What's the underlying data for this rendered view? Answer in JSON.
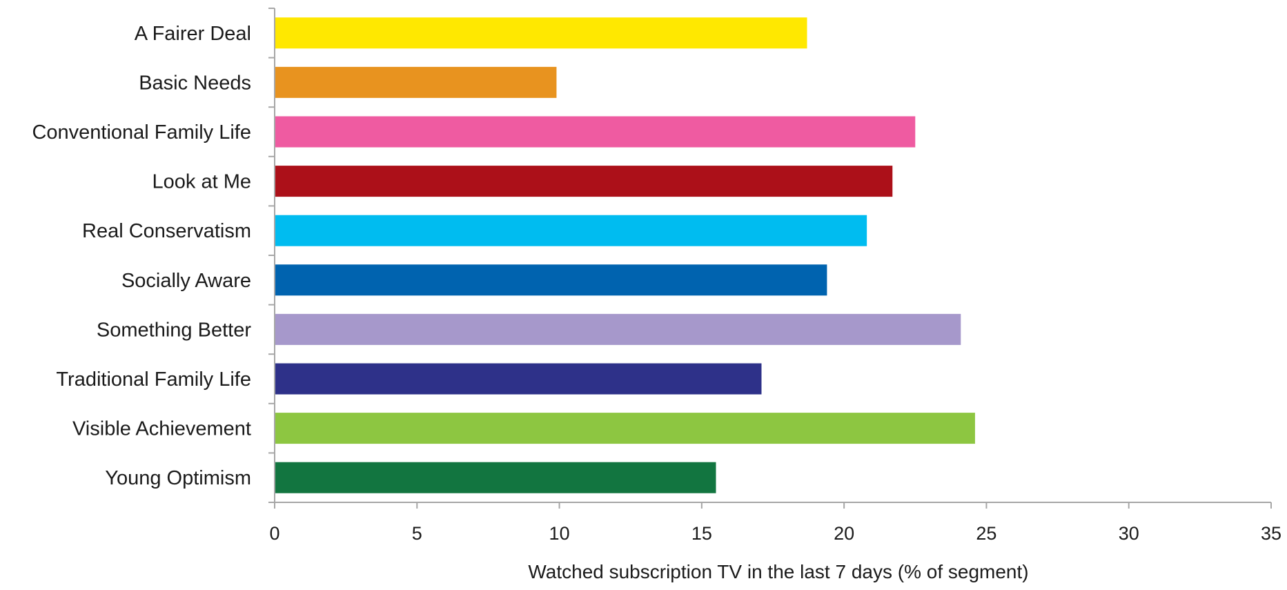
{
  "chart_data": {
    "type": "bar",
    "orientation": "horizontal",
    "categories": [
      "A Fairer Deal",
      "Basic Needs",
      "Conventional Family Life",
      "Look at Me",
      "Real Conservatism",
      "Socially Aware",
      "Something Better",
      "Traditional Family Life",
      "Visible Achievement",
      "Young Optimism"
    ],
    "values": [
      18.7,
      9.9,
      22.5,
      21.7,
      20.8,
      19.4,
      24.1,
      17.1,
      24.6,
      15.5
    ],
    "colors": [
      "#FFE800",
      "#E8931F",
      "#EF5BA1",
      "#AC1019",
      "#00BCF0",
      "#0063AF",
      "#A698CB",
      "#2E3189",
      "#8DC641",
      "#127540"
    ],
    "xlabel": "Watched subscription TV in the last 7 days (% of segment)",
    "ylabel": "",
    "title": "",
    "xlim": [
      0,
      35
    ],
    "xticks": [
      0,
      5,
      10,
      15,
      20,
      25,
      30,
      35
    ],
    "grid": false,
    "legend": "none"
  }
}
